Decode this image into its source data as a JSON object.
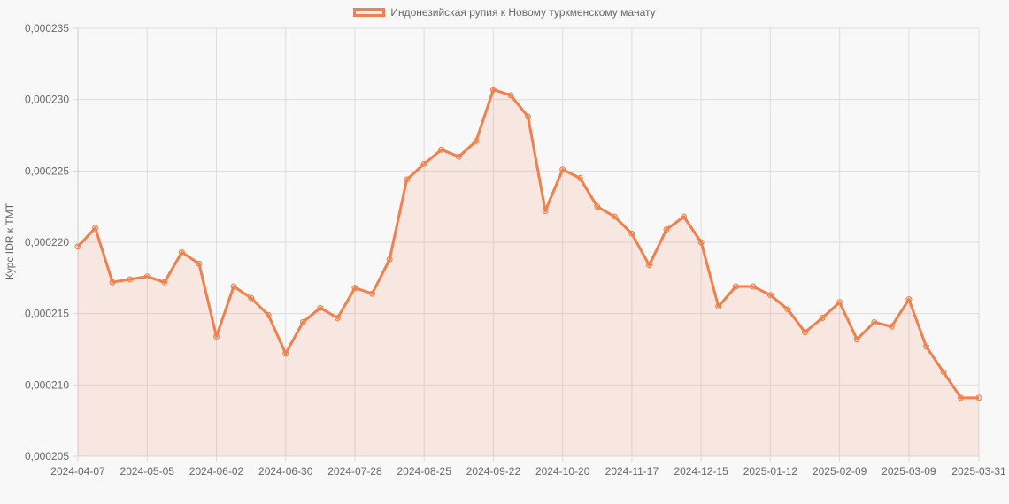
{
  "chart_data": {
    "type": "line",
    "title": "",
    "legend": [
      "Индонезийская рупия к Новому туркменскому манату"
    ],
    "legend_position": "top",
    "xlabel": "",
    "ylabel": "Курс IDR к TMT",
    "ylim": [
      0.000205,
      0.000235
    ],
    "yticks": [
      "0,000235",
      "0,000230",
      "0,000225",
      "0,000220",
      "0,000215",
      "0,000210",
      "0,000205"
    ],
    "xticks": [
      "2024-04-07",
      "2024-05-05",
      "2024-06-02",
      "2024-06-30",
      "2024-07-28",
      "2024-08-25",
      "2024-09-22",
      "2024-10-20",
      "2024-11-17",
      "2024-12-15",
      "2025-01-12",
      "2025-02-09",
      "2025-03-09",
      "2025-03-31"
    ],
    "grid": true,
    "fill": true,
    "color": "#f0804d",
    "series": [
      {
        "name": "Индонезийская рупия к Новому туркменскому манату",
        "values": [
          0.0002197,
          0.000221,
          0.0002172,
          0.0002174,
          0.0002176,
          0.0002172,
          0.0002193,
          0.0002185,
          0.0002134,
          0.0002169,
          0.0002161,
          0.0002149,
          0.0002122,
          0.0002144,
          0.0002154,
          0.0002147,
          0.0002168,
          0.0002164,
          0.0002188,
          0.0002244,
          0.0002255,
          0.0002265,
          0.000226,
          0.0002271,
          0.0002307,
          0.0002303,
          0.0002288,
          0.0002222,
          0.0002251,
          0.0002245,
          0.0002225,
          0.0002218,
          0.0002206,
          0.0002184,
          0.0002209,
          0.0002218,
          0.00022,
          0.0002155,
          0.0002169,
          0.0002169,
          0.0002163,
          0.0002153,
          0.0002137,
          0.0002147,
          0.0002158,
          0.0002132,
          0.0002144,
          0.0002141,
          0.000216,
          0.0002127,
          0.0002109,
          0.0002091,
          0.0002091
        ]
      }
    ]
  }
}
